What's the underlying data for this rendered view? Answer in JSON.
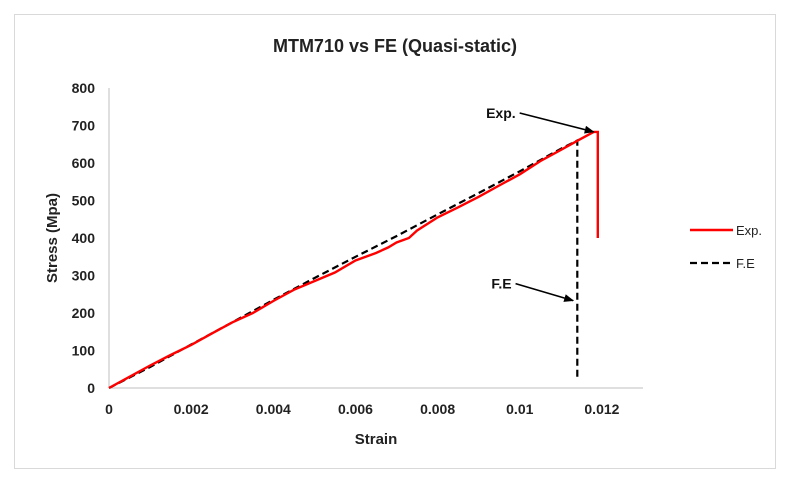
{
  "chart_data": {
    "type": "line",
    "title": "MTM710 vs FE (Quasi-static)",
    "xlabel": "Strain",
    "ylabel": "Stress (Mpa)",
    "xlim": [
      0,
      0.013
    ],
    "ylim": [
      0,
      800
    ],
    "x_ticks": [
      {
        "value": 0,
        "label": "0"
      },
      {
        "value": 0.002,
        "label": "0.002"
      },
      {
        "value": 0.004,
        "label": "0.004"
      },
      {
        "value": 0.006,
        "label": "0.006"
      },
      {
        "value": 0.008,
        "label": "0.008"
      },
      {
        "value": 0.01,
        "label": "0.01"
      },
      {
        "value": 0.012,
        "label": "0.012"
      }
    ],
    "y_ticks": [
      {
        "value": 0,
        "label": "0"
      },
      {
        "value": 100,
        "label": "100"
      },
      {
        "value": 200,
        "label": "200"
      },
      {
        "value": 300,
        "label": "300"
      },
      {
        "value": 400,
        "label": "400"
      },
      {
        "value": 500,
        "label": "500"
      },
      {
        "value": 600,
        "label": "600"
      },
      {
        "value": 700,
        "label": "700"
      },
      {
        "value": 800,
        "label": "800"
      }
    ],
    "grid": false,
    "legend": "right",
    "series": [
      {
        "name": "Exp.",
        "color": "#ff0000",
        "style": "solid",
        "points": [
          [
            0,
            0
          ],
          [
            0.0005,
            30
          ],
          [
            0.001,
            60
          ],
          [
            0.0015,
            88
          ],
          [
            0.002,
            115
          ],
          [
            0.0025,
            145
          ],
          [
            0.003,
            175
          ],
          [
            0.0035,
            200
          ],
          [
            0.004,
            232
          ],
          [
            0.0045,
            262
          ],
          [
            0.005,
            285
          ],
          [
            0.0055,
            308
          ],
          [
            0.006,
            340
          ],
          [
            0.0065,
            360
          ],
          [
            0.0068,
            375
          ],
          [
            0.007,
            388
          ],
          [
            0.0073,
            400
          ],
          [
            0.0075,
            420
          ],
          [
            0.008,
            455
          ],
          [
            0.0085,
            482
          ],
          [
            0.009,
            510
          ],
          [
            0.0095,
            540
          ],
          [
            0.01,
            570
          ],
          [
            0.0105,
            605
          ],
          [
            0.011,
            635
          ],
          [
            0.0115,
            665
          ],
          [
            0.0118,
            683
          ],
          [
            0.0119,
            683
          ],
          [
            0.0119,
            400
          ]
        ]
      },
      {
        "name": "F.E",
        "color": "#000000",
        "style": "dashed",
        "points": [
          [
            0,
            0
          ],
          [
            0.001,
            56
          ],
          [
            0.002,
            116
          ],
          [
            0.003,
            175
          ],
          [
            0.004,
            235
          ],
          [
            0.005,
            293
          ],
          [
            0.006,
            350
          ],
          [
            0.007,
            405
          ],
          [
            0.008,
            463
          ],
          [
            0.009,
            520
          ],
          [
            0.01,
            578
          ],
          [
            0.011,
            638
          ],
          [
            0.0114,
            660
          ],
          [
            0.0114,
            25
          ]
        ]
      }
    ],
    "annotations": [
      {
        "text": "Exp.",
        "label_pos": [
          0.0099,
          720
        ],
        "arrow_to": [
          0.0118,
          683
        ]
      },
      {
        "text": "F.E",
        "label_pos": [
          0.0098,
          265
        ],
        "arrow_to": [
          0.0113,
          233
        ]
      }
    ]
  }
}
